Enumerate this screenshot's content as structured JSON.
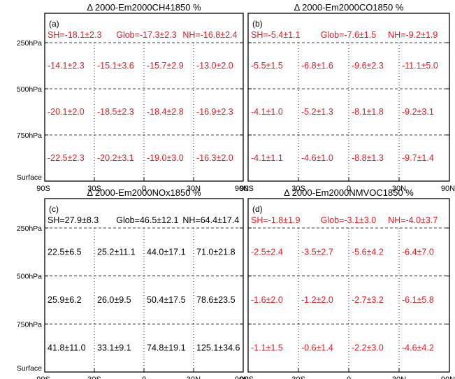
{
  "chart_data": [
    {
      "type": "table",
      "panel_label": "(a)",
      "title": "Δ 2000-Em2000CH41850 %",
      "color": "#e8191d",
      "summary": [
        "SH=-18.1±2.3",
        "Glob=-17.3±2.3",
        "NH=-16.8±2.4"
      ],
      "rows": [
        [
          "-14.1±2.3",
          "-15.1±3.6",
          "-15.7±2.9",
          "-13.0±2.0"
        ],
        [
          "-20.1±2.0",
          "-18.5±2.3",
          "-18.4±2.8",
          "-16.9±2.3"
        ],
        [
          "-22.5±2.3",
          "-20.2±3.1",
          "-19.0±3.0",
          "-16.3±2.0"
        ]
      ]
    },
    {
      "type": "table",
      "panel_label": "(b)",
      "title": "Δ 2000-Em2000CO1850 %",
      "color": "#e8191d",
      "summary": [
        "SH=-5.4±1.1",
        "Glob=-7.6±1.5",
        "NH=-9.2±1.9"
      ],
      "rows": [
        [
          "-5.5±1.5",
          "-6.8±1.6",
          "-9.6±2.3",
          "-11.1±5.0"
        ],
        [
          "-4.1±1.0",
          "-5.2±1.3",
          "-8.1±1.8",
          "-9.2±3.1"
        ],
        [
          "-4.1±1.1",
          "-4.6±1.0",
          "-8.8±1.3",
          "-9.7±1.4"
        ]
      ]
    },
    {
      "type": "table",
      "panel_label": "(c)",
      "title": "Δ 2000-Em2000NOx1850 %",
      "color": "#000000",
      "summary": [
        "SH=27.9±8.3",
        "Glob=46.5±12.1",
        "NH=64.4±17.4"
      ],
      "rows": [
        [
          "22.5±6.5",
          "25.2±11.1",
          "44.0±17.1",
          "71.0±21.8"
        ],
        [
          "25.9±6.2",
          "26.0±9.5",
          "50.4±17.5",
          "78.6±23.5"
        ],
        [
          "41.8±11.0",
          "33.1±9.1",
          "74.8±19.1",
          "125.1±34.6"
        ]
      ]
    },
    {
      "type": "table",
      "panel_label": "(d)",
      "title": "Δ 2000-Em2000NMVOC1850 %",
      "color": "#e8191d",
      "summary": [
        "SH=-1.8±1.9",
        "Glob=-3.1±3.0",
        "NH=-4.0±3.7"
      ],
      "rows": [
        [
          "-2.5±2.4",
          "-3.5±2.7",
          "-5.6±4.2",
          "-6.4±7.0"
        ],
        [
          "-1.6±2.0",
          "-1.2±2.0",
          "-2.7±3.2",
          "-6.1±5.8"
        ],
        [
          "-1.1±1.5",
          "-0.6±1.4",
          "-2.2±3.0",
          "-4.6±4.2"
        ]
      ]
    }
  ],
  "axes": {
    "x_ticks": [
      "90S",
      "30S",
      "0",
      "30N",
      "90N"
    ],
    "y_ticks": [
      "250hPa",
      "500hPa",
      "750hPa",
      "Surface"
    ]
  }
}
